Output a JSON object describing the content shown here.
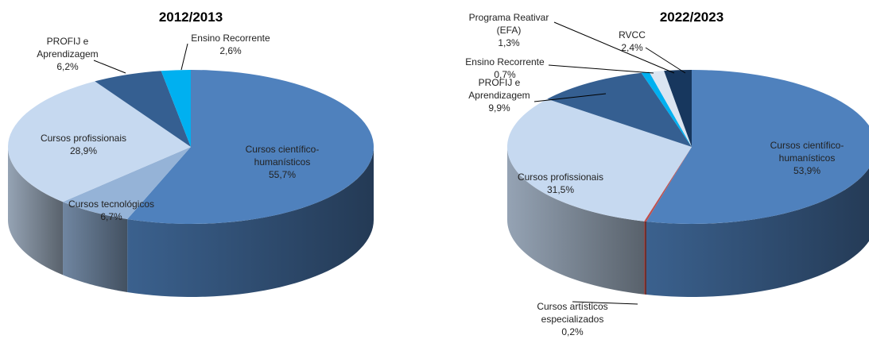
{
  "chart_data": [
    {
      "type": "pie3d",
      "title": "2012/2013",
      "categories": [
        "Cursos científico-humanísticos",
        "Cursos tecnológicos",
        "Cursos profissionais",
        "PROFIJ e Aprendizagem",
        "Ensino Recorrente"
      ],
      "values": [
        55.7,
        6.7,
        28.9,
        6.2,
        2.6
      ],
      "value_labels": [
        "55,7%",
        "6,7%",
        "28,9%",
        "6,2%",
        "2,6%"
      ],
      "colors": [
        "#4f81bd",
        "#95b3d7",
        "#c6d9f0",
        "#355f91",
        "#00b0f0"
      ]
    },
    {
      "type": "pie3d",
      "title": "2022/2023",
      "categories": [
        "Cursos científico-humanísticos",
        "Cursos artísticos especializados",
        "Cursos profissionais",
        "PROFIJ e Aprendizagem",
        "Ensino Recorrente",
        "Programa Reativar (EFA)",
        "RVCC"
      ],
      "values": [
        53.9,
        0.2,
        31.5,
        9.9,
        0.7,
        1.3,
        2.4
      ],
      "value_labels": [
        "53,9%",
        "0,2%",
        "31,5%",
        "9,9%",
        "0,7%",
        "1,3%",
        "2,4%"
      ],
      "colors": [
        "#4f81bd",
        "#c0504d",
        "#c6d9f0",
        "#355f91",
        "#00b0f0",
        "#dbe5f1",
        "#17375e"
      ]
    }
  ]
}
